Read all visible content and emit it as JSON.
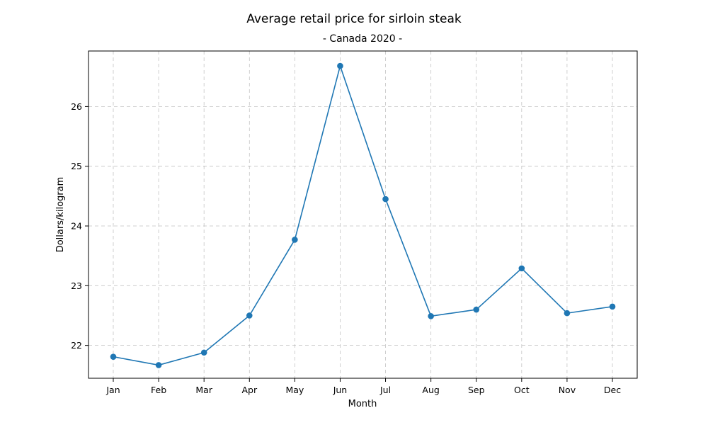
{
  "chart_data": {
    "type": "line",
    "title": "Average retail price for sirloin steak",
    "subtitle": "- Canada 2020 -",
    "xlabel": "Month",
    "ylabel": "Dollars/kilogram",
    "categories": [
      "Jan",
      "Feb",
      "Mar",
      "Apr",
      "May",
      "Jun",
      "Jul",
      "Aug",
      "Sep",
      "Oct",
      "Nov",
      "Dec"
    ],
    "series": [
      {
        "values": [
          21.81,
          21.67,
          21.88,
          22.5,
          23.77,
          26.68,
          24.45,
          22.49,
          22.6,
          23.29,
          22.54,
          22.65
        ],
        "color": "#1f77b4",
        "marker": "circle"
      }
    ],
    "ylim": [
      21.45,
      26.93
    ],
    "yticks": [
      22,
      23,
      24,
      25,
      26
    ],
    "grid": true
  }
}
